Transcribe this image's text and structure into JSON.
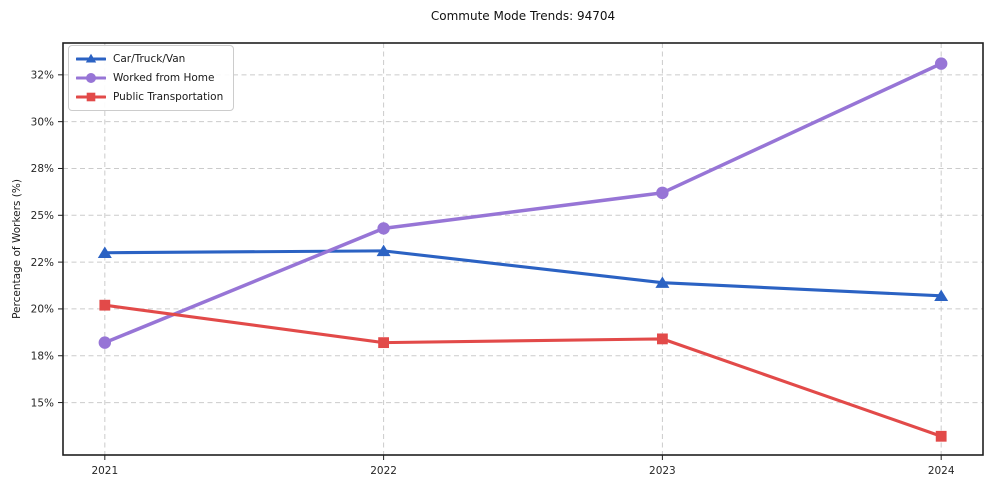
{
  "chart_data": {
    "type": "line",
    "title": "Commute Mode Trends: 94704",
    "xlabel": "",
    "ylabel": "Percentage of Workers (%)",
    "x": [
      2021,
      2022,
      2023,
      2024
    ],
    "x_tick_labels": [
      "2021",
      "2022",
      "2023",
      "2024"
    ],
    "y_ticks": [
      {
        "value": 15,
        "label": "15%"
      },
      {
        "value": 17.5,
        "label": "18%"
      },
      {
        "value": 20,
        "label": "20%"
      },
      {
        "value": 22.5,
        "label": "22%"
      },
      {
        "value": 25,
        "label": "25%"
      },
      {
        "value": 27.5,
        "label": "28%"
      },
      {
        "value": 30,
        "label": "30%"
      },
      {
        "value": 32.5,
        "label": "32%"
      }
    ],
    "xlim": [
      2020.85,
      2024.15
    ],
    "ylim": [
      12.2,
      34.2
    ],
    "grid": "dashed-both-axes",
    "legend_position": "upper-left",
    "series": [
      {
        "name": "Car/Truck/Van",
        "color": "#2b62c3",
        "marker": "triangle",
        "values": [
          23.0,
          23.1,
          21.4,
          20.7
        ]
      },
      {
        "name": "Worked from Home",
        "color": "#9775d6",
        "marker": "circle",
        "values": [
          18.2,
          24.3,
          26.2,
          33.1
        ]
      },
      {
        "name": "Public Transportation",
        "color": "#e24a49",
        "marker": "square",
        "values": [
          20.2,
          18.2,
          18.4,
          13.2
        ]
      }
    ]
  },
  "style_colors": {
    "grid": "#cbcbcb",
    "spine": "#1f1f1f",
    "tick_text": "#262626",
    "background": "#ffffff",
    "legend_border": "#cccccc"
  }
}
